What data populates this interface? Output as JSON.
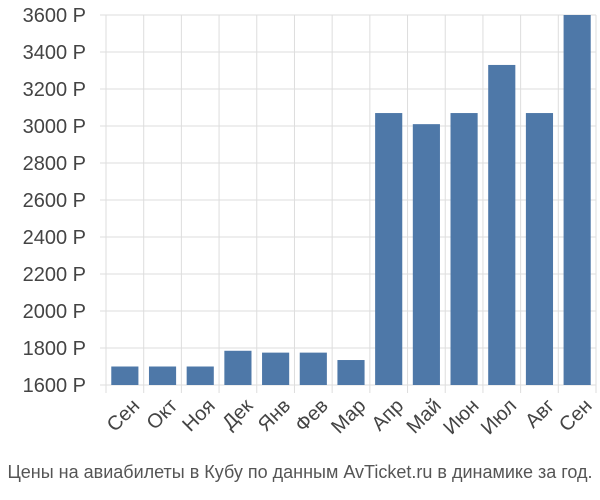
{
  "chart_data": {
    "type": "bar",
    "categories": [
      "Сен",
      "Окт",
      "Ноя",
      "Дек",
      "Янв",
      "Фев",
      "Мар",
      "Апр",
      "Май",
      "Июн",
      "Июл",
      "Авг",
      "Сен"
    ],
    "values": [
      1700,
      1700,
      1700,
      1785,
      1775,
      1775,
      1735,
      3070,
      3010,
      3070,
      3330,
      3070,
      3600
    ],
    "ylim": [
      1600,
      3600
    ],
    "yticks": [
      1600,
      1800,
      2000,
      2200,
      2400,
      2600,
      2800,
      3000,
      3200,
      3400,
      3600
    ],
    "ytick_suffix": " Р",
    "grid": true,
    "bar_color": "#4e78a8",
    "grid_color": "#dddddd"
  },
  "caption": "Цены на авиабилеты в Кубу по данным AvTicket.ru в динамике за год."
}
